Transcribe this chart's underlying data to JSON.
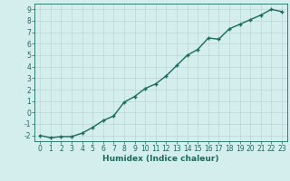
{
  "x": [
    0,
    1,
    2,
    3,
    4,
    5,
    6,
    7,
    8,
    9,
    10,
    11,
    12,
    13,
    14,
    15,
    16,
    17,
    18,
    19,
    20,
    21,
    22,
    23
  ],
  "y": [
    -2.0,
    -2.2,
    -2.1,
    -2.1,
    -1.8,
    -1.3,
    -0.7,
    -0.3,
    0.9,
    1.4,
    2.1,
    2.5,
    3.2,
    4.1,
    5.0,
    5.5,
    6.5,
    6.4,
    7.3,
    7.7,
    8.1,
    8.5,
    9.0,
    8.8
  ],
  "xlim": [
    -0.5,
    23.5
  ],
  "ylim": [
    -2.5,
    9.5
  ],
  "xticks": [
    0,
    1,
    2,
    3,
    4,
    5,
    6,
    7,
    8,
    9,
    10,
    11,
    12,
    13,
    14,
    15,
    16,
    17,
    18,
    19,
    20,
    21,
    22,
    23
  ],
  "yticks": [
    -2,
    -1,
    0,
    1,
    2,
    3,
    4,
    5,
    6,
    7,
    8,
    9
  ],
  "xlabel": "Humidex (Indice chaleur)",
  "line_color": "#1a6b5a",
  "bg_color": "#d4eeed",
  "grid_color": "#b8d8d4",
  "xlabel_fontsize": 6.5,
  "tick_fontsize": 5.5,
  "line_width": 1.0,
  "marker_size": 3.5
}
